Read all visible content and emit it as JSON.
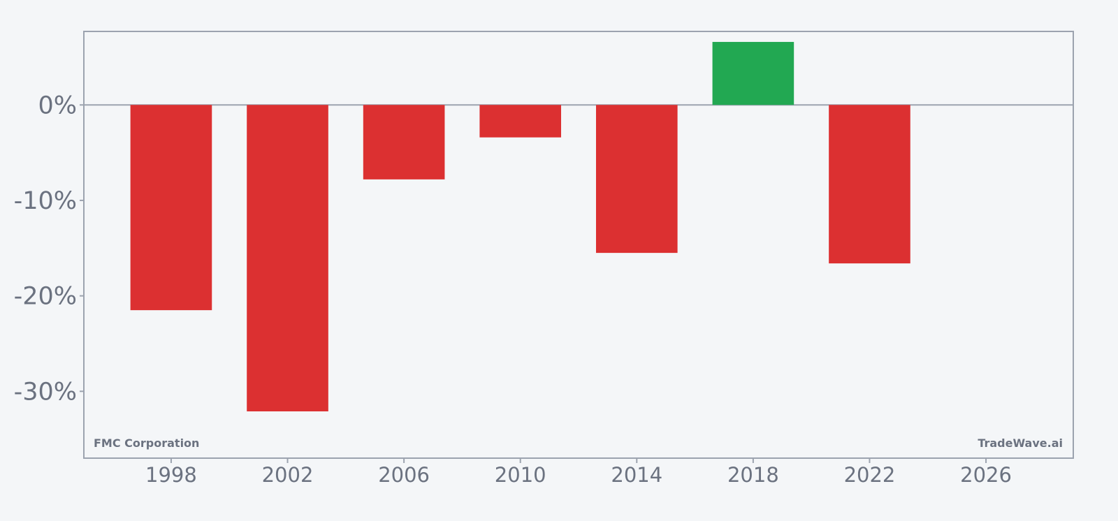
{
  "chart_data": {
    "type": "bar",
    "x": [
      1998,
      2002,
      2006,
      2010,
      2014,
      2018,
      2022
    ],
    "values": [
      -21.5,
      -32.1,
      -7.8,
      -3.4,
      -15.5,
      6.6,
      -16.6
    ],
    "xlim": [
      1995,
      2029
    ],
    "ylim": [
      -37,
      7.7
    ],
    "x_ticks": [
      1998,
      2002,
      2006,
      2010,
      2014,
      2018,
      2022,
      2026
    ],
    "x_tick_labels": [
      "1998",
      "2002",
      "2006",
      "2010",
      "2014",
      "2018",
      "2022",
      "2026"
    ],
    "y_ticks": [
      0,
      -10,
      -20,
      -30
    ],
    "y_tick_labels": [
      "0%",
      "-10%",
      "-20%",
      "-30%"
    ],
    "bar_width_years": 2.8,
    "positive_color": "#22a852",
    "negative_color": "#dc3031",
    "axis_color": "#9ca3af",
    "text_color": "#6b7280",
    "background": "#f4f6f8",
    "grid": false,
    "legend": "none",
    "title": "",
    "xlabel": "",
    "ylabel": ""
  },
  "watermarks": {
    "left": "FMC Corporation",
    "right": "TradeWave.ai"
  }
}
